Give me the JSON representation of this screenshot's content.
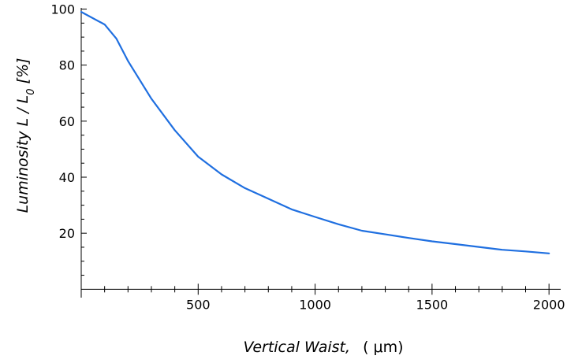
{
  "chart_data": {
    "type": "line",
    "title": "",
    "xlabel": {
      "italic_part": "Vertical Waist,",
      "unit_part": "( μm)"
    },
    "ylabel": {
      "prefix": "Luminosity  L / L",
      "subscript": "0",
      "suffix": "  [%]"
    },
    "xlim": [
      0,
      2050
    ],
    "ylim": [
      -3,
      101
    ],
    "x_ticks": [
      500,
      1000,
      1500,
      2000
    ],
    "y_ticks": [
      20,
      40,
      60,
      80,
      100
    ],
    "x_minor_step": 100,
    "y_minor_step": 5,
    "grid": false,
    "legend": "none",
    "series": [
      {
        "color": "#1f6fe0",
        "x": [
          0,
          100,
          150,
          200,
          300,
          400,
          500,
          600,
          700,
          800,
          900,
          1000,
          1100,
          1200,
          1300,
          1400,
          1500,
          1600,
          1700,
          1800,
          1900,
          2000
        ],
        "y": [
          99,
          94.5,
          89.5,
          81.5,
          68,
          56.8,
          47.3,
          41,
          36.1,
          32.3,
          28.5,
          25.8,
          23.2,
          20.9,
          19.6,
          18.3,
          17.1,
          16.1,
          15.1,
          14.1,
          13.5,
          12.8
        ]
      }
    ]
  }
}
